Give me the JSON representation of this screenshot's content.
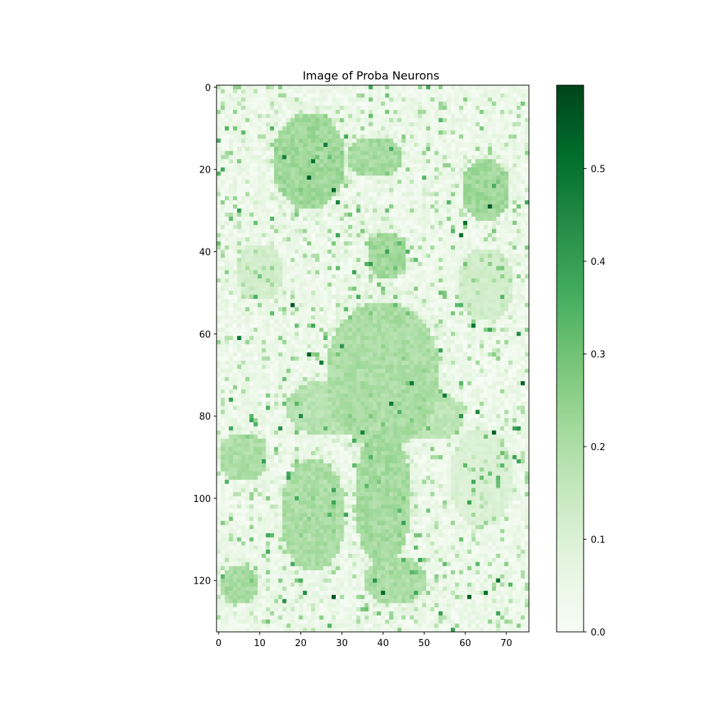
{
  "chart_data": {
    "type": "heatmap",
    "title": "Image of Proba Neurons",
    "xlabel": "",
    "ylabel": "",
    "grid": false,
    "colormap": "Greens",
    "rows": 133,
    "cols": 76,
    "x_ticks": [
      0,
      10,
      20,
      30,
      40,
      50,
      60,
      70
    ],
    "y_ticks": [
      0,
      20,
      40,
      60,
      80,
      100,
      120
    ],
    "colorbar": {
      "range": [
        0.0,
        0.59
      ],
      "ticks": [
        0.0,
        0.1,
        0.2,
        0.3,
        0.4,
        0.5
      ],
      "tick_labels": [
        "0.0",
        "0.1",
        "0.2",
        "0.3",
        "0.4",
        "0.5"
      ]
    },
    "value_range": [
      0.0,
      0.59
    ],
    "background_level": 0.05,
    "regions": [
      {
        "cx": 22,
        "cy": 18,
        "rx": 9,
        "ry": 12,
        "value": 0.22
      },
      {
        "cx": 38,
        "cy": 17,
        "rx": 7,
        "ry": 5,
        "value": 0.21
      },
      {
        "cx": 65,
        "cy": 25,
        "rx": 6,
        "ry": 8,
        "value": 0.22
      },
      {
        "cx": 41,
        "cy": 41,
        "rx": 5,
        "ry": 6,
        "value": 0.22
      },
      {
        "cx": 40,
        "cy": 70,
        "rx": 14,
        "ry": 18,
        "value": 0.2
      },
      {
        "cx": 28,
        "cy": 78,
        "rx": 12,
        "ry": 7,
        "value": 0.18
      },
      {
        "cx": 52,
        "cy": 80,
        "rx": 8,
        "ry": 6,
        "value": 0.17
      },
      {
        "cx": 23,
        "cy": 104,
        "rx": 8,
        "ry": 14,
        "value": 0.2
      },
      {
        "cx": 40,
        "cy": 100,
        "rx": 7,
        "ry": 16,
        "value": 0.21
      },
      {
        "cx": 43,
        "cy": 120,
        "rx": 8,
        "ry": 6,
        "value": 0.2
      },
      {
        "cx": 6,
        "cy": 90,
        "rx": 6,
        "ry": 6,
        "value": 0.2
      },
      {
        "cx": 5,
        "cy": 121,
        "rx": 5,
        "ry": 5,
        "value": 0.21
      },
      {
        "cx": 10,
        "cy": 45,
        "rx": 6,
        "ry": 7,
        "value": 0.12
      },
      {
        "cx": 65,
        "cy": 48,
        "rx": 7,
        "ry": 9,
        "value": 0.12
      },
      {
        "cx": 64,
        "cy": 95,
        "rx": 8,
        "ry": 12,
        "value": 0.1
      }
    ],
    "hot_spots": [
      [
        16,
        17
      ],
      [
        23,
        18
      ],
      [
        26,
        14
      ],
      [
        29,
        28
      ],
      [
        22,
        22
      ],
      [
        28,
        25
      ],
      [
        59,
        36
      ],
      [
        60,
        33
      ],
      [
        66,
        29
      ],
      [
        18,
        53
      ],
      [
        5,
        61
      ],
      [
        22,
        65
      ],
      [
        25,
        67
      ],
      [
        62,
        58
      ],
      [
        73,
        60
      ],
      [
        30,
        63
      ],
      [
        42,
        77
      ],
      [
        47,
        72
      ],
      [
        55,
        75
      ],
      [
        59,
        80
      ],
      [
        63,
        79
      ],
      [
        67,
        84
      ],
      [
        73,
        83
      ],
      [
        35,
        84
      ],
      [
        20,
        80
      ],
      [
        15,
        83
      ],
      [
        40,
        123
      ],
      [
        38,
        120
      ],
      [
        28,
        124
      ],
      [
        21,
        123
      ],
      [
        61,
        124
      ],
      [
        65,
        123
      ],
      [
        16,
        125
      ],
      [
        68,
        120
      ],
      [
        74,
        72
      ]
    ]
  }
}
